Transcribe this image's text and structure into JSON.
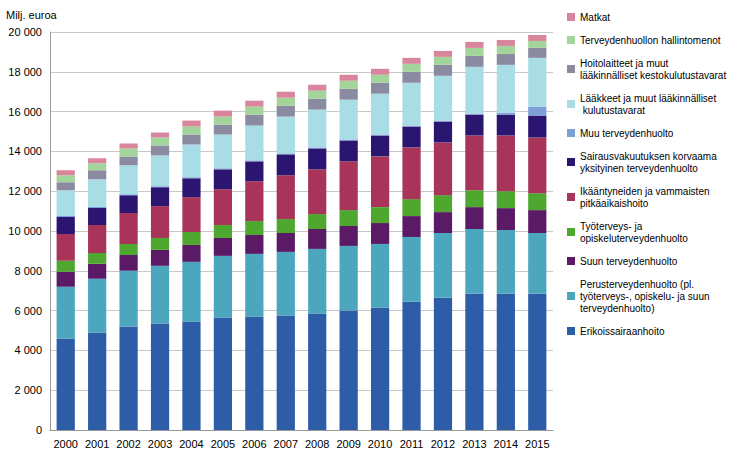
{
  "chart_data": {
    "type": "bar",
    "stacked": true,
    "grid": true,
    "legend": "right",
    "ylabel": "Milj. euroa",
    "categories": [
      "2000",
      "2001",
      "2002",
      "2003",
      "2004",
      "2005",
      "2006",
      "2007",
      "2008",
      "2009",
      "2010",
      "2011",
      "2012",
      "2013",
      "2014",
      "2015"
    ],
    "ylim": [
      0,
      20000
    ],
    "yticks": [
      0,
      {
        "value": 2000,
        "label": "2 000"
      },
      {
        "value": 4000,
        "label": "4 000"
      },
      {
        "value": 6000,
        "label": "6 000"
      },
      {
        "value": 8000,
        "label": "8 000"
      },
      {
        "value": 10000,
        "label": "10 000"
      },
      {
        "value": 12000,
        "label": "12 000"
      },
      {
        "value": 14000,
        "label": "14 000"
      },
      {
        "value": 16000,
        "label": "16 000"
      },
      {
        "value": 18000,
        "label": "18 000"
      },
      {
        "value": 20000,
        "label": "20 000"
      }
    ],
    "series": [
      {
        "name": "Erikoissairaanhoito",
        "color": "#2E5DA8",
        "values": [
          4600,
          4900,
          5200,
          5350,
          5450,
          5650,
          5700,
          5750,
          5850,
          6000,
          6150,
          6450,
          6650,
          6850,
          6850,
          6850
        ]
      },
      {
        "name": "Perusterveydenhuolto (pl. työterveys-, opiskelu- ja suun terveydenhuolto)",
        "color": "#4CA7BE",
        "values": [
          2600,
          2700,
          2800,
          2900,
          3000,
          3100,
          3150,
          3200,
          3250,
          3250,
          3200,
          3250,
          3250,
          3250,
          3200,
          3050
        ]
      },
      {
        "name": "Suun terveydenhuolto",
        "color": "#5B1A66",
        "values": [
          750,
          750,
          800,
          800,
          850,
          900,
          950,
          950,
          1000,
          1000,
          1050,
          1050,
          1050,
          1100,
          1100,
          1150
        ]
      },
      {
        "name": "Työterveys- ja opiskeluterveydenhuolto",
        "color": "#4EA72E",
        "values": [
          550,
          550,
          550,
          600,
          650,
          650,
          700,
          700,
          750,
          800,
          800,
          850,
          850,
          850,
          850,
          850
        ]
      },
      {
        "name": "Ikääntyneiden ja vammaisten pitkäaikaishoito",
        "color": "#A8345A",
        "values": [
          1350,
          1400,
          1550,
          1600,
          1750,
          1800,
          2000,
          2200,
          2250,
          2450,
          2550,
          2600,
          2650,
          2750,
          2800,
          2800
        ]
      },
      {
        "name": "Sairausvakuutuksen korvaama yksityinen terveydenhuolto",
        "color": "#2A1570",
        "values": [
          850,
          850,
          900,
          950,
          950,
          1000,
          1000,
          1050,
          1050,
          1050,
          1050,
          1050,
          1050,
          1050,
          1050,
          1100
        ]
      },
      {
        "name": "Muu terveydenhuolto",
        "color": "#7F9FD8",
        "values": [
          50,
          50,
          50,
          50,
          50,
          50,
          50,
          50,
          50,
          50,
          50,
          50,
          50,
          50,
          100,
          450
        ]
      },
      {
        "name": "Lääkkeet ja muut lääkinnälliset kulutustavarat",
        "color": "#A9DDE6",
        "values": [
          1300,
          1400,
          1450,
          1550,
          1650,
          1700,
          1750,
          1850,
          1900,
          2000,
          2050,
          2150,
          2250,
          2350,
          2400,
          2450
        ]
      },
      {
        "name": "Hoitolaitteet ja muut lääkinnälliset kestokulutustavarat",
        "color": "#8A8AA0",
        "values": [
          400,
          450,
          450,
          500,
          500,
          500,
          550,
          550,
          550,
          550,
          550,
          550,
          550,
          550,
          550,
          500
        ]
      },
      {
        "name": "Terveydenhuollon hallintomenot",
        "color": "#A3D49A",
        "values": [
          350,
          350,
          400,
          400,
          400,
          400,
          400,
          400,
          400,
          400,
          400,
          400,
          400,
          400,
          400,
          350
        ]
      },
      {
        "name": "Matkat",
        "color": "#D9869C",
        "values": [
          250,
          250,
          250,
          250,
          300,
          300,
          300,
          300,
          300,
          300,
          300,
          300,
          300,
          300,
          300,
          300
        ]
      }
    ]
  }
}
